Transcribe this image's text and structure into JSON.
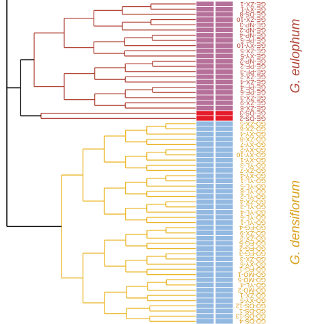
{
  "colors": {
    "root_branch": "#111111",
    "eulophum_branch": "#b2473a",
    "densiflorum_branch": "#eab72b",
    "eulophum_cell": "#b6719a",
    "ds_cell": "#e51b2a",
    "densiflorum_cell": "#93b9e1",
    "eulophum_text": "#b2473a",
    "densiflorum_text": "#dba21f",
    "cell_divider": "#ffffff"
  },
  "groups": [
    {
      "name": "G. eulophum",
      "color_key": "eulophum_text",
      "from_tip": 0,
      "to_tip": 20
    },
    {
      "name": "G. densiflorum",
      "color_key": "densiflorum_text",
      "from_tip": 23,
      "to_tip": 61
    }
  ],
  "tips": [
    {
      "label": "GE-ZX-1",
      "group": "eulophum"
    },
    {
      "label": "GE-XY-1",
      "group": "eulophum"
    },
    {
      "label": "GE-DS-8",
      "group": "eulophum"
    },
    {
      "label": "GE-ZX-10",
      "group": "eulophum"
    },
    {
      "label": "GE-NP-3",
      "group": "eulophum"
    },
    {
      "label": "GE-NP-2",
      "group": "eulophum"
    },
    {
      "label": "GE-NP-4",
      "group": "eulophum"
    },
    {
      "label": "GE-PF-5",
      "group": "eulophum"
    },
    {
      "label": "GE-XY-10",
      "group": "eulophum"
    },
    {
      "label": "GE-ZX-5",
      "group": "eulophum"
    },
    {
      "label": "GE-XY-5",
      "group": "eulophum"
    },
    {
      "label": "GE-NP-2",
      "group": "eulophum"
    },
    {
      "label": "GE-PF-2",
      "group": "eulophum"
    },
    {
      "label": "GE-PF-3",
      "group": "eulophum"
    },
    {
      "label": "GE-ZX-2",
      "group": "eulophum"
    },
    {
      "label": "GE-ZX-4",
      "group": "eulophum"
    },
    {
      "label": "GE-PF-4",
      "group": "eulophum"
    },
    {
      "label": "GE-PF-6",
      "group": "eulophum"
    },
    {
      "label": "GE-ZX-3",
      "group": "eulophum"
    },
    {
      "label": "GE-ZX-9",
      "group": "eulophum"
    },
    {
      "label": "GE-ZX-6",
      "group": "eulophum"
    },
    {
      "label": "GE-DS-3",
      "group": "ds"
    },
    {
      "label": "GE-DS-2",
      "group": "ds"
    },
    {
      "label": "GD-ZX-5",
      "group": "densiflorum"
    },
    {
      "label": "GD-ZX-6",
      "group": "densiflorum"
    },
    {
      "label": "GD-XY-4",
      "group": "densiflorum"
    },
    {
      "label": "GD-ZX-8",
      "group": "densiflorum"
    },
    {
      "label": "GD-XY-7",
      "group": "densiflorum"
    },
    {
      "label": "GD-XY-2",
      "group": "densiflorum"
    },
    {
      "label": "GD-XY-10",
      "group": "densiflorum"
    },
    {
      "label": "GD-XY-1",
      "group": "densiflorum"
    },
    {
      "label": "GD-YL-3",
      "group": "densiflorum"
    },
    {
      "label": "GD-ZX-7",
      "group": "densiflorum"
    },
    {
      "label": "GD-XY-4",
      "group": "densiflorum"
    },
    {
      "label": "GD-YL-1",
      "group": "densiflorum"
    },
    {
      "label": "GD-YL-5",
      "group": "densiflorum"
    },
    {
      "label": "GD-YL-8",
      "group": "densiflorum"
    },
    {
      "label": "GD-YL-2",
      "group": "densiflorum"
    },
    {
      "label": "GD-ZX-4",
      "group": "densiflorum"
    },
    {
      "label": "GD-YL-3",
      "group": "densiflorum"
    },
    {
      "label": "GD-YL-4",
      "group": "densiflorum"
    },
    {
      "label": "GD-YL-6",
      "group": "densiflorum"
    },
    {
      "label": "GD-YL-1",
      "group": "densiflorum"
    },
    {
      "label": "GD-FG-4",
      "group": "densiflorum"
    },
    {
      "label": "GD-ZX-9",
      "group": "densiflorum"
    },
    {
      "label": "GD-ZX-2",
      "group": "densiflorum"
    },
    {
      "label": "GD-FG-5",
      "group": "densiflorum"
    },
    {
      "label": "GD-FG-2",
      "group": "densiflorum"
    },
    {
      "label": "GD-FG-3",
      "group": "densiflorum"
    },
    {
      "label": "GD-ZX-3",
      "group": "densiflorum"
    },
    {
      "label": "GD-XY-6",
      "group": "densiflorum"
    },
    {
      "label": "GD-FG-1",
      "group": "densiflorum"
    },
    {
      "label": "GD-MO-1",
      "group": "densiflorum"
    },
    {
      "label": "GD-MO-5",
      "group": "densiflorum"
    },
    {
      "label": "GD-YL-4",
      "group": "densiflorum"
    },
    {
      "label": "GD-MO-2",
      "group": "densiflorum"
    },
    {
      "label": "GD-ZX-1",
      "group": "densiflorum"
    },
    {
      "label": "GD-XY-5",
      "group": "densiflorum"
    },
    {
      "label": "GD-DS-12",
      "group": "densiflorum"
    },
    {
      "label": "GD-DS-1",
      "group": "densiflorum"
    },
    {
      "label": "GD-DS-13",
      "group": "densiflorum"
    },
    {
      "label": "GD-DS-4",
      "group": "densiflorum"
    }
  ]
}
